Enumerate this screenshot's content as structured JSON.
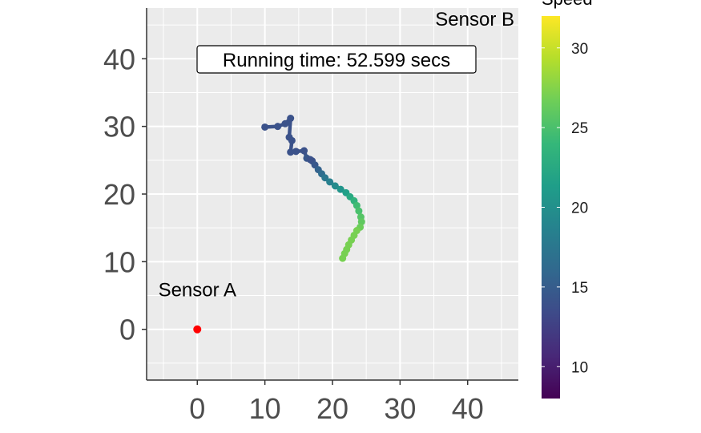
{
  "chart_data": {
    "type": "scatter",
    "title": "",
    "xlabel": "",
    "ylabel": "",
    "xlim": [
      -7.5,
      47.5
    ],
    "ylim": [
      -7.5,
      47.5
    ],
    "x_ticks": [
      0,
      10,
      20,
      30,
      40
    ],
    "y_ticks": [
      0,
      10,
      20,
      30,
      40
    ],
    "grid": true,
    "background": "#ebebeb",
    "annotation": "Running time: 52.599 secs",
    "sensors": [
      {
        "name": "Sensor A",
        "x": 0,
        "y": 0,
        "color": "#ff0000"
      },
      {
        "name": "Sensor B",
        "x": 47,
        "y": 47
      }
    ],
    "colorbar": {
      "title": "Speed",
      "min": 8,
      "max": 32,
      "ticks": [
        10,
        15,
        20,
        25,
        30
      ],
      "colormap": "viridis"
    },
    "series": [
      {
        "points": [
          {
            "x": 10.0,
            "y": 29.9,
            "speed": 14.0
          },
          {
            "x": 11.9,
            "y": 30.0,
            "speed": 14.0
          },
          {
            "x": 13.0,
            "y": 30.4,
            "speed": 14.0
          },
          {
            "x": 13.8,
            "y": 31.2,
            "speed": 14.0
          },
          {
            "x": 13.6,
            "y": 28.4,
            "speed": 14.0
          },
          {
            "x": 14.0,
            "y": 27.9,
            "speed": 14.0
          },
          {
            "x": 13.8,
            "y": 26.2,
            "speed": 14.0
          },
          {
            "x": 14.6,
            "y": 26.3,
            "speed": 14.0
          },
          {
            "x": 15.8,
            "y": 26.4,
            "speed": 14.0
          },
          {
            "x": 16.2,
            "y": 25.3,
            "speed": 14.5
          },
          {
            "x": 16.7,
            "y": 25.1,
            "speed": 14.0
          },
          {
            "x": 17.0,
            "y": 24.9,
            "speed": 14.0
          },
          {
            "x": 17.4,
            "y": 24.3,
            "speed": 14.5
          },
          {
            "x": 17.9,
            "y": 23.6,
            "speed": 15.5
          },
          {
            "x": 18.4,
            "y": 23.0,
            "speed": 16.5
          },
          {
            "x": 18.9,
            "y": 22.4,
            "speed": 17.5
          },
          {
            "x": 19.6,
            "y": 21.8,
            "speed": 18.5
          },
          {
            "x": 20.4,
            "y": 21.2,
            "speed": 19.5
          },
          {
            "x": 21.2,
            "y": 20.7,
            "speed": 20.5
          },
          {
            "x": 22.0,
            "y": 20.2,
            "speed": 21.5
          },
          {
            "x": 22.6,
            "y": 19.6,
            "speed": 22.5
          },
          {
            "x": 23.2,
            "y": 19.0,
            "speed": 23.5
          },
          {
            "x": 23.6,
            "y": 18.3,
            "speed": 24.5
          },
          {
            "x": 23.9,
            "y": 17.5,
            "speed": 25.0
          },
          {
            "x": 24.2,
            "y": 16.6,
            "speed": 25.5
          },
          {
            "x": 24.3,
            "y": 15.9,
            "speed": 26.0
          },
          {
            "x": 24.1,
            "y": 15.1,
            "speed": 26.5
          },
          {
            "x": 23.6,
            "y": 14.6,
            "speed": 27.0
          },
          {
            "x": 23.2,
            "y": 13.9,
            "speed": 27.0
          },
          {
            "x": 22.8,
            "y": 13.2,
            "speed": 27.0
          },
          {
            "x": 22.4,
            "y": 12.5,
            "speed": 27.0
          },
          {
            "x": 22.1,
            "y": 11.8,
            "speed": 27.0
          },
          {
            "x": 21.8,
            "y": 11.2,
            "speed": 27.0
          },
          {
            "x": 21.5,
            "y": 10.5,
            "speed": 27.0
          }
        ]
      }
    ]
  }
}
